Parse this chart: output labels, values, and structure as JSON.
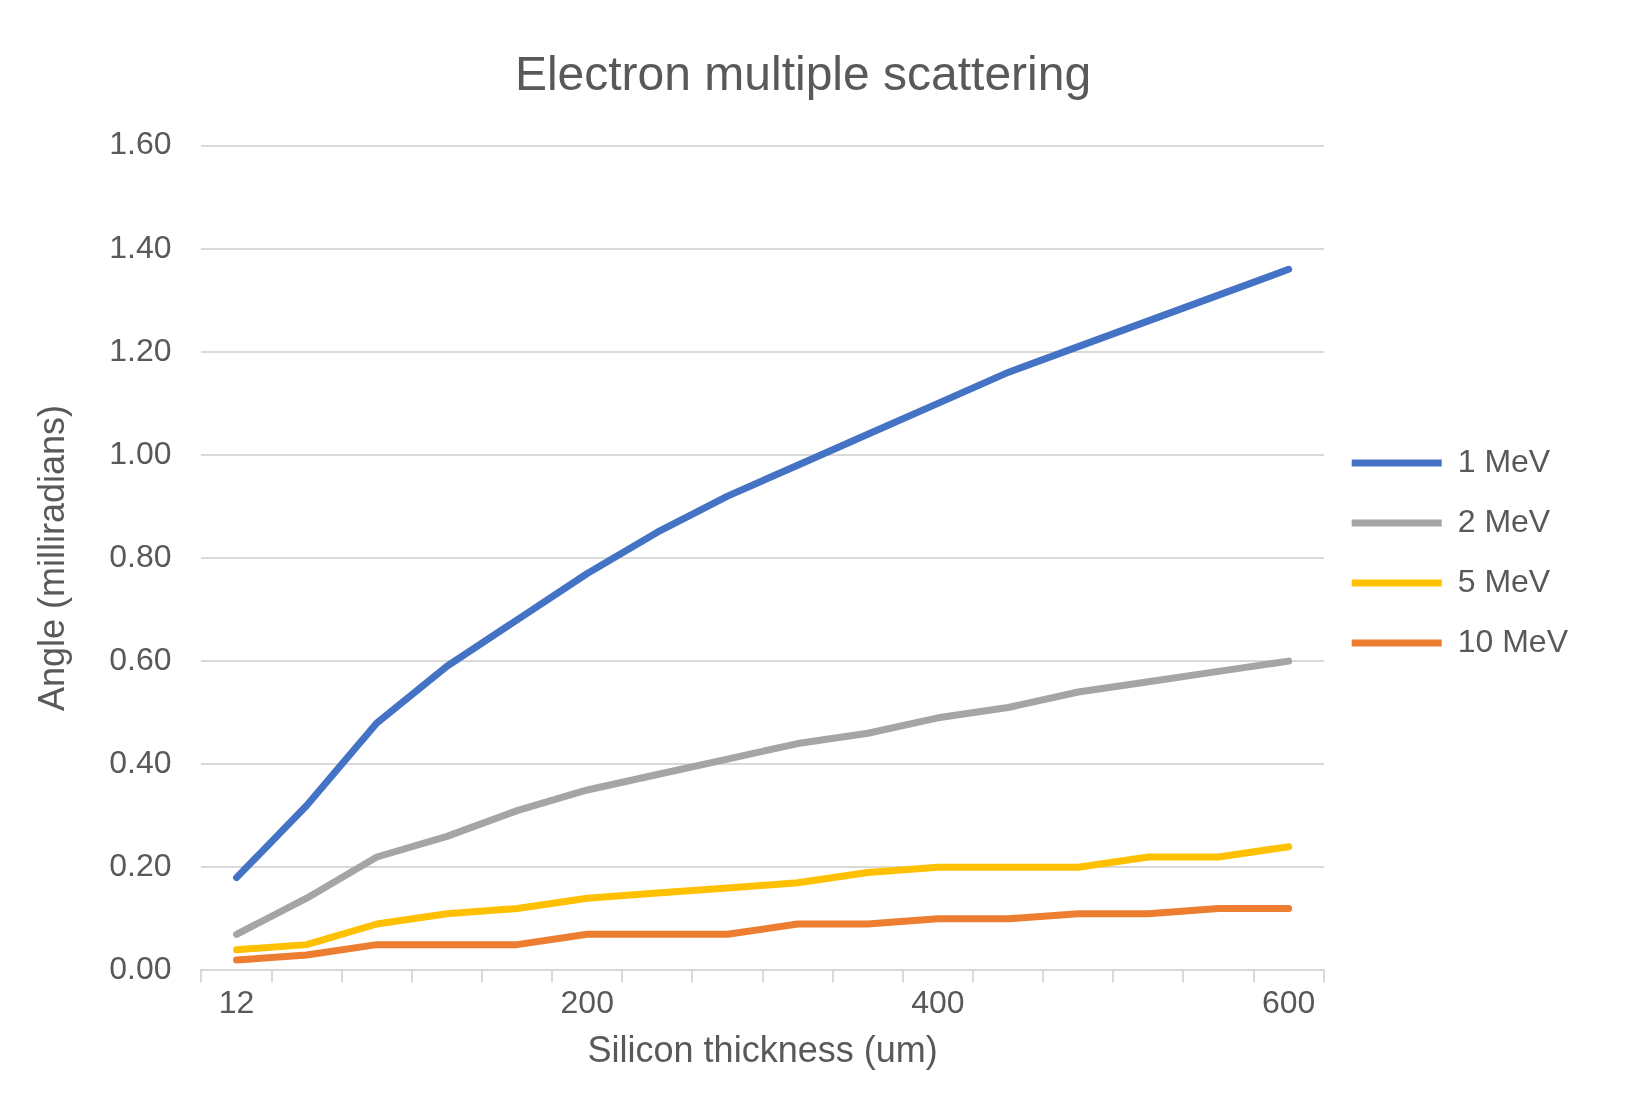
{
  "chart_data": {
    "type": "line",
    "title": "Electron multiple scattering",
    "xlabel": "Silicon thickness (um)",
    "ylabel": "Angle (milliradians)",
    "categories": [
      "12",
      null,
      null,
      null,
      null,
      "200",
      null,
      null,
      null,
      null,
      "400",
      null,
      null,
      null,
      null,
      "600"
    ],
    "series": [
      {
        "name": "1 MeV",
        "color": "#4472c4",
        "values": [
          0.18,
          0.32,
          0.48,
          0.59,
          0.68,
          0.77,
          0.85,
          0.92,
          0.98,
          1.04,
          1.1,
          1.16,
          1.21,
          1.26,
          1.31,
          1.36
        ]
      },
      {
        "name": "2 MeV",
        "color": "#a5a5a5",
        "values": [
          0.07,
          0.14,
          0.22,
          0.26,
          0.31,
          0.35,
          0.38,
          0.41,
          0.44,
          0.46,
          0.49,
          0.51,
          0.54,
          0.56,
          0.58,
          0.6
        ]
      },
      {
        "name": "5 MeV",
        "color": "#ffc000",
        "values": [
          0.04,
          0.05,
          0.09,
          0.11,
          0.12,
          0.14,
          0.15,
          0.16,
          0.17,
          0.19,
          0.2,
          0.2,
          0.2,
          0.22,
          0.22,
          0.24
        ]
      },
      {
        "name": "10 MeV",
        "color": "#ed7d31",
        "values": [
          0.02,
          0.03,
          0.05,
          0.05,
          0.05,
          0.07,
          0.07,
          0.07,
          0.09,
          0.09,
          0.1,
          0.1,
          0.11,
          0.11,
          0.12,
          0.12
        ]
      }
    ],
    "ylim": [
      0,
      1.6
    ],
    "yticks": [
      {
        "value": 0,
        "label": "0.00"
      },
      {
        "value": 0.2,
        "label": "0.20"
      },
      {
        "value": 0.4,
        "label": "0.40"
      },
      {
        "value": 0.6,
        "label": "0.60"
      },
      {
        "value": 0.8,
        "label": "0.80"
      },
      {
        "value": 1,
        "label": "1.00"
      },
      {
        "value": 1.2,
        "label": "1.20"
      },
      {
        "value": 1.4,
        "label": "1.40"
      },
      {
        "value": 1.6,
        "label": "1.60"
      }
    ],
    "grid": "y",
    "legend": "right",
    "marker": "none",
    "line_style": "solid"
  }
}
